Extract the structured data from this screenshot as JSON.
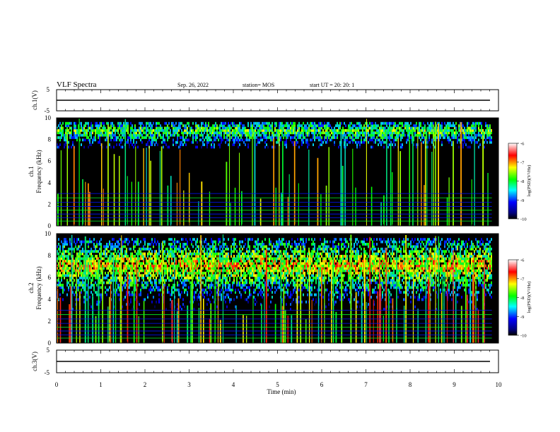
{
  "header": {
    "title": "VLF Spectra",
    "date": "Sep. 26, 2022",
    "station": "station= MOS",
    "start_ut": "start  UT =   20: 20: 1"
  },
  "chart_data": [
    {
      "type": "line",
      "panel": "ch1-voltage",
      "ylabel": "ch.1(V)",
      "ylim": [
        -5,
        5
      ],
      "y_tick_labels": [
        "5",
        "-5"
      ],
      "series": [
        {
          "values_constant": 0
        }
      ]
    },
    {
      "type": "heatmap",
      "panel": "ch1-spectrogram",
      "ylabel": "ch.1\nFrequency (kHz)",
      "ylim": [
        0,
        10
      ],
      "y_tick_labels": [
        "0",
        "2",
        "4",
        "6",
        "8",
        "10"
      ],
      "colorbar": {
        "label": "log(PSD)(V²/Hz)",
        "range": [
          -10,
          -6
        ],
        "tick_labels": [
          "-6",
          "-7",
          "-8",
          "-9",
          "-10"
        ]
      }
    },
    {
      "type": "heatmap",
      "panel": "ch2-spectrogram",
      "ylabel": "ch.2\nFrequency (kHz)",
      "ylim": [
        0,
        10
      ],
      "y_tick_labels": [
        "0",
        "2",
        "4",
        "6",
        "8",
        "10"
      ],
      "colorbar": {
        "label": "log(PSD)(V²/Hz)",
        "range": [
          -10,
          -6
        ],
        "tick_labels": [
          "-6",
          "-7",
          "-8",
          "-9",
          "-10"
        ]
      }
    },
    {
      "type": "line",
      "panel": "ch3-voltage",
      "ylabel": "ch.3(V)",
      "ylim": [
        -5,
        5
      ],
      "y_tick_labels": [
        "5",
        "-5"
      ],
      "series": [
        {
          "values_constant": 0
        }
      ]
    }
  ],
  "x_axis": {
    "label": "Time (min)",
    "xlim": [
      0,
      10
    ],
    "tick_labels": [
      "0",
      "1",
      "2",
      "3",
      "4",
      "5",
      "6",
      "7",
      "8",
      "9",
      "10"
    ],
    "data_end": 9.85
  },
  "colors": {
    "background_spectrogram": "#000000",
    "colormap": [
      "#000000",
      "#0000ff",
      "#00ffff",
      "#00ff00",
      "#ffff00",
      "#ff0000",
      "#ffffff"
    ]
  }
}
